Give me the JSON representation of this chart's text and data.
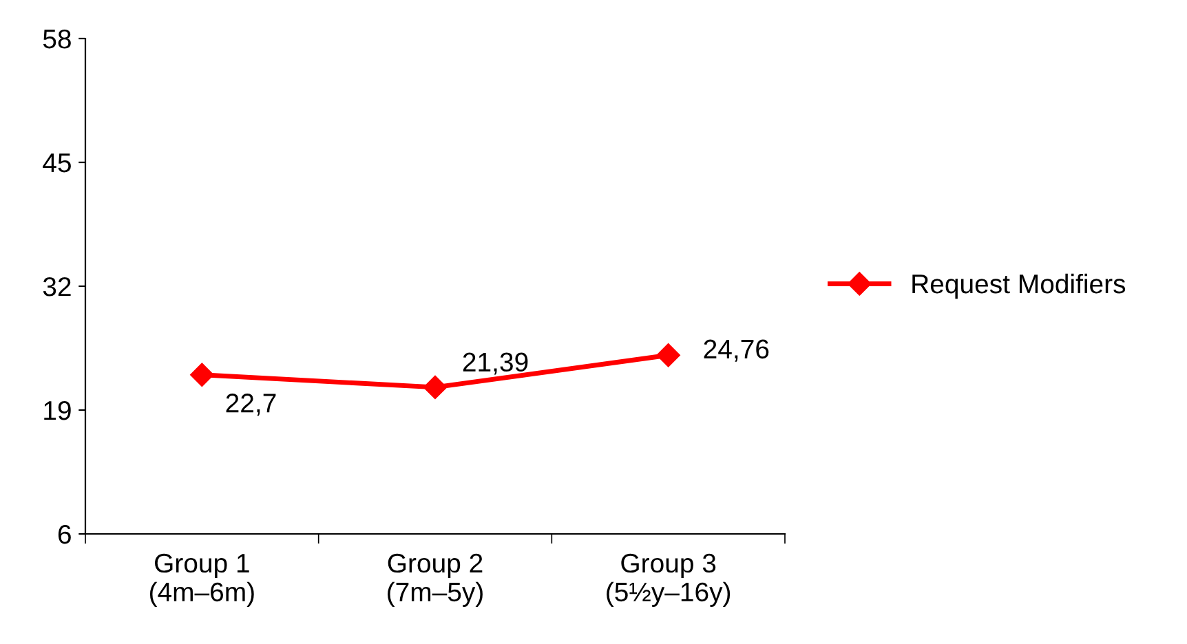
{
  "chart_data": {
    "type": "line",
    "categories": [
      "Group 1\n(4m–6m)",
      "Group 2\n(7m–5y)",
      "Group 3\n(5½y–16y)"
    ],
    "series": [
      {
        "name": "Request Modifiers",
        "color": "#ff0000",
        "values": [
          22.7,
          21.39,
          24.76
        ],
        "value_labels": [
          "22,7",
          "21,39",
          "24,76"
        ]
      }
    ],
    "ylim": [
      6,
      58
    ],
    "yticks": [
      6,
      19,
      32,
      45,
      58
    ],
    "grid": false,
    "legend": "right",
    "marker": "diamond",
    "line_style": "solid"
  }
}
